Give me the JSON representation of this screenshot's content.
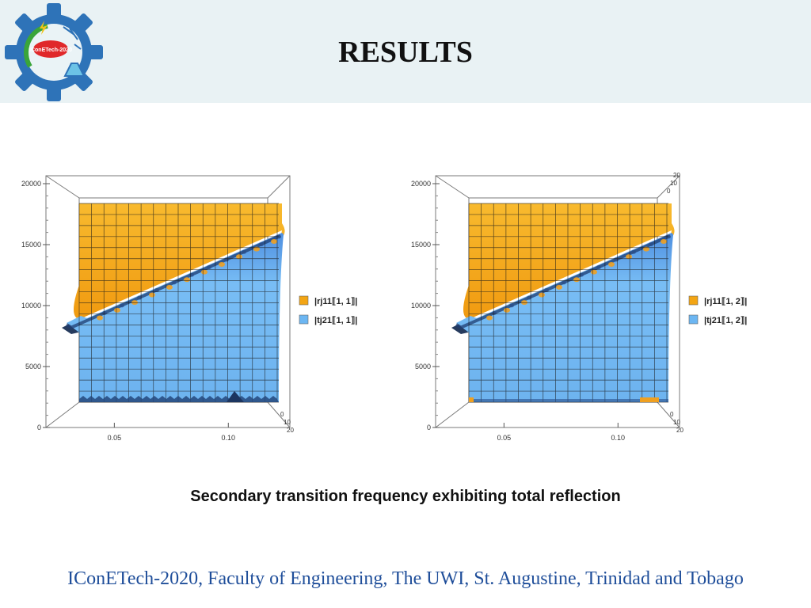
{
  "slide": {
    "title": "RESULTS",
    "logo_text": "IConETech-2020",
    "caption": "Secondary transition frequency exhibiting total reflection",
    "footer": "IConETech-2020, Faculty of Engineering, The UWI, St. Augustine, Trinidad and Tobago"
  },
  "colors": {
    "header_bg": "#e9f2f4",
    "footer_text": "#1f4e9a",
    "orange_surface": "#f3a514",
    "blue_surface": "#6cb6f2",
    "logo_gear": "#2e73b8"
  },
  "chart_data": [
    {
      "type": "surface3d",
      "title": "",
      "x_ticks": [
        "0.05",
        "0.10"
      ],
      "y_ticks": [
        "0",
        "5000",
        "10000",
        "15000",
        "20000"
      ],
      "depth_ticks": [
        "0",
        "10",
        "20"
      ],
      "ylim": [
        0,
        20000
      ],
      "series": [
        {
          "name": "|rj11⟦1, 1⟧|",
          "color": "#f3a514"
        },
        {
          "name": "|tj21⟦1, 1⟧|",
          "color": "#6cb6f2"
        }
      ]
    },
    {
      "type": "surface3d",
      "title": "",
      "x_ticks": [
        "0.05",
        "0.10"
      ],
      "y_ticks": [
        "0",
        "5000",
        "10000",
        "15000",
        "20000"
      ],
      "depth_ticks": [
        "0",
        "10",
        "20"
      ],
      "ylim": [
        0,
        20000
      ],
      "series": [
        {
          "name": "|rj11⟦1, 2⟧|",
          "color": "#f3a514"
        },
        {
          "name": "|tj21⟦1, 2⟧|",
          "color": "#6cb6f2"
        }
      ]
    }
  ]
}
